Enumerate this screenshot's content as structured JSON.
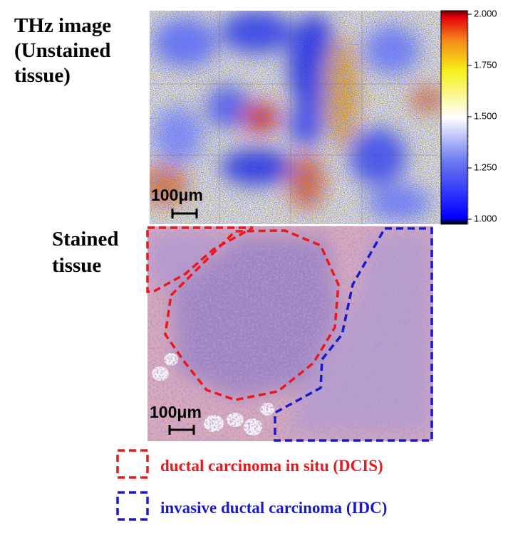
{
  "thz_label": [
    "THz image",
    "(Unstained",
    "tissue)"
  ],
  "stained_label": [
    "Stained",
    "tissue"
  ],
  "thz_scale_bar": "100μm",
  "stained_scale_bar": "100μm",
  "colorbar": {
    "lim": [
      1,
      2
    ],
    "ticks": [
      {
        "value": 1,
        "label": "1.000"
      },
      {
        "value": 1.25,
        "label": "1.250"
      },
      {
        "value": 1.5,
        "label": "1.500"
      },
      {
        "value": 1.75,
        "label": "1.750"
      },
      {
        "value": 2,
        "label": "2.000"
      }
    ]
  },
  "legend": [
    {
      "label": "ductal carcinoma in situ (DCIS)",
      "color": "#e8191c"
    },
    {
      "label": "invasive ductal carcinoma (IDC)",
      "color": "#1a1acc"
    }
  ]
}
